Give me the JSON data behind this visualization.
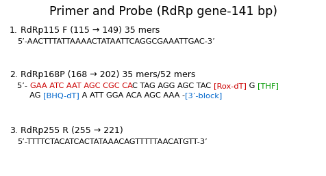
{
  "title": "Primer and Probe (RdRp gene-141 bp)",
  "background_color": "#ffffff",
  "title_fontsize": 12.5,
  "label_fontsize": 9,
  "seq_fontsize": 8.2,
  "num_fontsize": 9,
  "items": [
    {
      "number": "1.",
      "label": "RdRp115 F (115 → 149) 35 mers",
      "sequence_lines": [
        [
          {
            "text": "5’-AACTTTATTAAAACTATAATTCAGGCGAAATTGAC-3’",
            "color": "#000000"
          }
        ]
      ]
    },
    {
      "number": "2.",
      "label": "RdRp168P (168 → 202) 35 mers/52 mers",
      "sequence_lines": [
        [
          {
            "text": "5’- ",
            "color": "#000000"
          },
          {
            "text": "GAA ATC AAT AGC CGC CA",
            "color": "#cc0000"
          },
          {
            "text": "C TAG AGG AGC TAC ",
            "color": "#000000"
          },
          {
            "text": "[Rox-dT]",
            "color": "#cc0000"
          },
          {
            "text": " G ",
            "color": "#000000"
          },
          {
            "text": "[THF]",
            "color": "#009900"
          }
        ],
        [
          {
            "text": "     AG ",
            "color": "#000000"
          },
          {
            "text": "[BHQ-dT]",
            "color": "#0066cc"
          },
          {
            "text": " A ATT GGA ACA AGC AAA -",
            "color": "#000000"
          },
          {
            "text": "[3’-block]",
            "color": "#0066cc"
          }
        ]
      ]
    },
    {
      "number": "3.",
      "label": "RdRp255 R (255 → 221)",
      "sequence_lines": [
        [
          {
            "text": "5’-TTTTCTACATCACTATAAACAGTTTTTAACATGTT-3’",
            "color": "#000000"
          }
        ]
      ]
    }
  ]
}
